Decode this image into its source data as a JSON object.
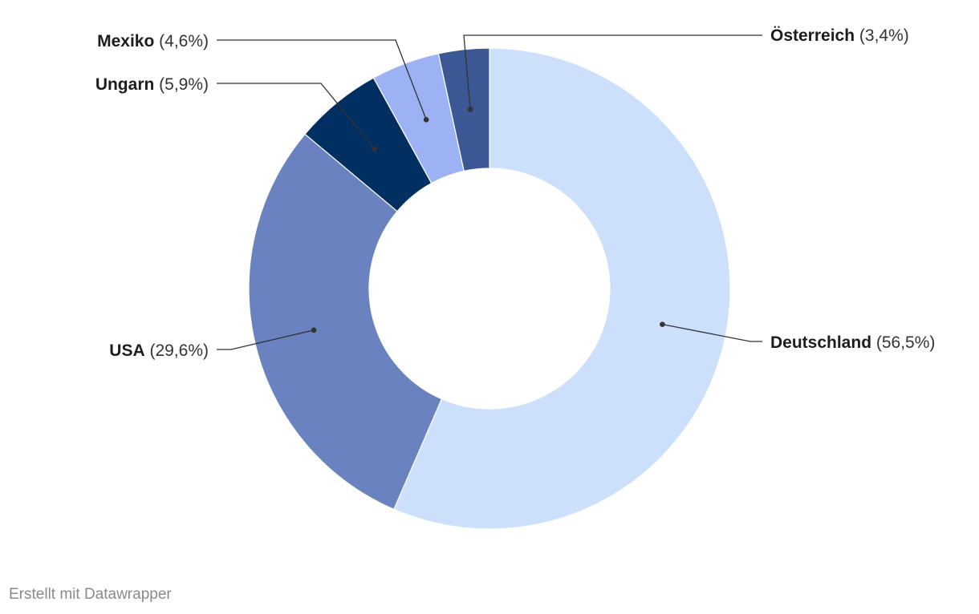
{
  "chart_data": {
    "type": "pie",
    "subtype": "donut",
    "title": "",
    "slices": [
      {
        "label": "Deutschland",
        "value": 56.5,
        "value_label": "(56,5%)",
        "color": "#cce0fc"
      },
      {
        "label": "USA",
        "value": 29.6,
        "value_label": "(29,6%)",
        "color": "#6b82c0"
      },
      {
        "label": "Ungarn",
        "value": 5.9,
        "value_label": "(5,9%)",
        "color": "#022f62"
      },
      {
        "label": "Mexiko",
        "value": 4.6,
        "value_label": "(4,6%)",
        "color": "#9db2f4"
      },
      {
        "label": "Österreich",
        "value": 3.4,
        "value_label": "(3,4%)",
        "color": "#3b5894"
      }
    ]
  },
  "footer": {
    "credit": "Erstellt mit Datawrapper"
  }
}
